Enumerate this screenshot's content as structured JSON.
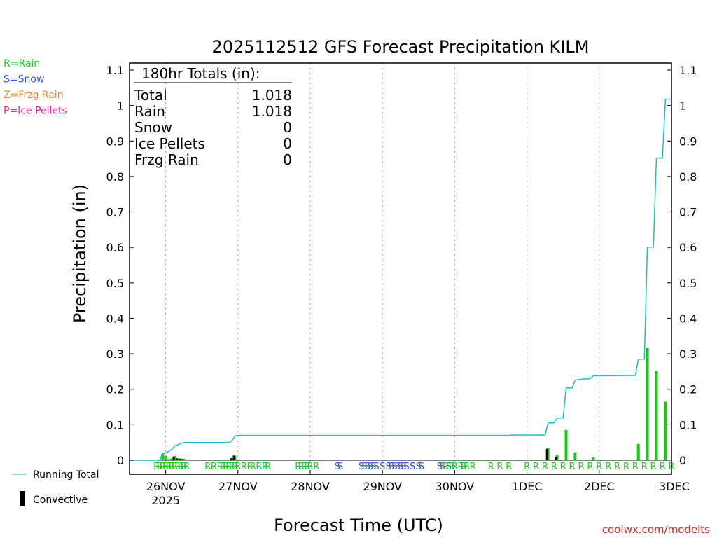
{
  "chart_data": {
    "type": "bar",
    "title": "2025112512 GFS Forecast Precipitation KILM",
    "xlabel": "Forecast Time (UTC)",
    "ylabel": "Precipitation (in)",
    "ylim": [
      0,
      1.1
    ],
    "y_ticks": [
      "0",
      "0.1",
      "0.2",
      "0.3",
      "0.4",
      "0.5",
      "0.6",
      "0.7",
      "0.8",
      "0.9",
      "1",
      "1.1"
    ],
    "x_range_hours": [
      0,
      180
    ],
    "x_ticks": [
      {
        "hour": 12,
        "label": "26NOV",
        "sublabel": "2025"
      },
      {
        "hour": 36,
        "label": "27NOV",
        "sublabel": ""
      },
      {
        "hour": 60,
        "label": "28NOV",
        "sublabel": ""
      },
      {
        "hour": 84,
        "label": "29NOV",
        "sublabel": ""
      },
      {
        "hour": 108,
        "label": "30NOV",
        "sublabel": ""
      },
      {
        "hour": 132,
        "label": "1DEC",
        "sublabel": ""
      },
      {
        "hour": 156,
        "label": "2DEC",
        "sublabel": ""
      },
      {
        "hour": 180,
        "label": "3DEC",
        "sublabel": ""
      }
    ],
    "legend": [
      {
        "text": "R=Rain",
        "color": "#22cc22"
      },
      {
        "text": "S=Snow",
        "color": "#3355dd"
      },
      {
        "text": "Z=Frzg Rain",
        "color": "#ee8833"
      },
      {
        "text": "P=Ice Pellets",
        "color": "#ee2299"
      }
    ],
    "series_legend": {
      "running_total": "Running Total",
      "convective": "Convective"
    },
    "totals": {
      "header": "180hr Totals (in):",
      "rows": [
        {
          "label": "Total",
          "value": "1.018"
        },
        {
          "label": "Rain",
          "value": "1.018"
        },
        {
          "label": "Snow",
          "value": "0"
        },
        {
          "label": "Ice Pellets",
          "value": "0"
        },
        {
          "label": "Frzg Rain",
          "value": "0"
        }
      ]
    },
    "colors": {
      "rain_bar": "#11cc11",
      "convective_bar": "#000000",
      "running_total": "#22bbcc",
      "rain_text": "#22cc22",
      "snow_text": "#3355dd"
    },
    "precip_bars": [
      {
        "hour": 11,
        "value": 0.018,
        "convective": 0.0
      },
      {
        "hour": 12,
        "value": 0.012,
        "convective": 0.0
      },
      {
        "hour": 13,
        "value": 0.003,
        "convective": 0.0
      },
      {
        "hour": 14,
        "value": 0.005,
        "convective": 0.0
      },
      {
        "hour": 15,
        "value": 0.012,
        "convective": 0.01
      },
      {
        "hour": 16,
        "value": 0.006,
        "convective": 0.005
      },
      {
        "hour": 17,
        "value": 0.005,
        "convective": 0.004
      },
      {
        "hour": 18,
        "value": 0.004,
        "convective": 0.003
      },
      {
        "hour": 19,
        "value": 0.002,
        "convective": 0.001
      },
      {
        "hour": 31,
        "value": 0.001,
        "convective": 0.0
      },
      {
        "hour": 32,
        "value": 0.001,
        "convective": 0.0
      },
      {
        "hour": 33,
        "value": 0.001,
        "convective": 0.0
      },
      {
        "hour": 34,
        "value": 0.006,
        "convective": 0.005
      },
      {
        "hour": 35,
        "value": 0.013,
        "convective": 0.013
      },
      {
        "hour": 36,
        "value": 0.001,
        "convective": 0.0
      },
      {
        "hour": 37,
        "value": 0.001,
        "convective": 0.0
      },
      {
        "hour": 139,
        "value": 0.034,
        "convective": 0.032
      },
      {
        "hour": 142,
        "value": 0.014,
        "convective": 0.01
      },
      {
        "hour": 145,
        "value": 0.085,
        "convective": 0.0
      },
      {
        "hour": 148,
        "value": 0.022,
        "convective": 0.0
      },
      {
        "hour": 151,
        "value": 0.001,
        "convective": 0.0
      },
      {
        "hour": 154,
        "value": 0.008,
        "convective": 0.0
      },
      {
        "hour": 157,
        "value": 0.001,
        "convective": 0.0
      },
      {
        "hour": 160,
        "value": 0.001,
        "convective": 0.0
      },
      {
        "hour": 163,
        "value": 0.001,
        "convective": 0.0
      },
      {
        "hour": 166,
        "value": 0.001,
        "convective": 0.0
      },
      {
        "hour": 169,
        "value": 0.046,
        "convective": 0.0
      },
      {
        "hour": 172,
        "value": 0.316,
        "convective": 0.0
      },
      {
        "hour": 175,
        "value": 0.251,
        "convective": 0.0
      },
      {
        "hour": 178,
        "value": 0.165,
        "convective": 0.0
      }
    ],
    "running_total": [
      {
        "hour": 0,
        "value": 0.0
      },
      {
        "hour": 10,
        "value": 0.0
      },
      {
        "hour": 11,
        "value": 0.018
      },
      {
        "hour": 12,
        "value": 0.02
      },
      {
        "hour": 13,
        "value": 0.025
      },
      {
        "hour": 14,
        "value": 0.03
      },
      {
        "hour": 15,
        "value": 0.04
      },
      {
        "hour": 16,
        "value": 0.043
      },
      {
        "hour": 17,
        "value": 0.047
      },
      {
        "hour": 18,
        "value": 0.05
      },
      {
        "hour": 33,
        "value": 0.05
      },
      {
        "hour": 34,
        "value": 0.055
      },
      {
        "hour": 35,
        "value": 0.068
      },
      {
        "hour": 36,
        "value": 0.07
      },
      {
        "hour": 126,
        "value": 0.07
      },
      {
        "hour": 127,
        "value": 0.071
      },
      {
        "hour": 138,
        "value": 0.071
      },
      {
        "hour": 139,
        "value": 0.105
      },
      {
        "hour": 141,
        "value": 0.105
      },
      {
        "hour": 142,
        "value": 0.119
      },
      {
        "hour": 144,
        "value": 0.119
      },
      {
        "hour": 145,
        "value": 0.204
      },
      {
        "hour": 147,
        "value": 0.204
      },
      {
        "hour": 148,
        "value": 0.226
      },
      {
        "hour": 150,
        "value": 0.228
      },
      {
        "hour": 151,
        "value": 0.229
      },
      {
        "hour": 153,
        "value": 0.23
      },
      {
        "hour": 154,
        "value": 0.238
      },
      {
        "hour": 168,
        "value": 0.239
      },
      {
        "hour": 169,
        "value": 0.285
      },
      {
        "hour": 171,
        "value": 0.285
      },
      {
        "hour": 172,
        "value": 0.601
      },
      {
        "hour": 174,
        "value": 0.601
      },
      {
        "hour": 175,
        "value": 0.852
      },
      {
        "hour": 177,
        "value": 0.852
      },
      {
        "hour": 178,
        "value": 1.018
      },
      {
        "hour": 180,
        "value": 1.018
      }
    ],
    "ptype_markers": [
      {
        "hour": 9,
        "text": "R"
      },
      {
        "hour": 10,
        "text": "R"
      },
      {
        "hour": 11,
        "text": "R"
      },
      {
        "hour": 12,
        "text": "R"
      },
      {
        "hour": 13,
        "text": "R"
      },
      {
        "hour": 14,
        "text": "R"
      },
      {
        "hour": 15,
        "text": "R"
      },
      {
        "hour": 16,
        "text": "R"
      },
      {
        "hour": 17,
        "text": "R"
      },
      {
        "hour": 18,
        "text": "R"
      },
      {
        "hour": 19,
        "text": "R"
      },
      {
        "hour": 26,
        "text": "R"
      },
      {
        "hour": 28,
        "text": "R"
      },
      {
        "hour": 30,
        "text": "R"
      },
      {
        "hour": 31,
        "text": "R"
      },
      {
        "hour": 32,
        "text": "R"
      },
      {
        "hour": 33,
        "text": "R"
      },
      {
        "hour": 34,
        "text": "R"
      },
      {
        "hour": 35,
        "text": "R"
      },
      {
        "hour": 36,
        "text": "R"
      },
      {
        "hour": 38,
        "text": "R"
      },
      {
        "hour": 40,
        "text": "R"
      },
      {
        "hour": 41,
        "text": "R"
      },
      {
        "hour": 43,
        "text": "R"
      },
      {
        "hour": 45,
        "text": "R"
      },
      {
        "hour": 46,
        "text": "R"
      },
      {
        "hour": 56,
        "text": "R"
      },
      {
        "hour": 57,
        "text": "R"
      },
      {
        "hour": 58,
        "text": "R"
      },
      {
        "hour": 59,
        "text": "R"
      },
      {
        "hour": 60,
        "text": "R"
      },
      {
        "hour": 62,
        "text": "R"
      },
      {
        "hour": 69,
        "text": "S"
      },
      {
        "hour": 70,
        "text": "S"
      },
      {
        "hour": 77,
        "text": "S"
      },
      {
        "hour": 78,
        "text": "S"
      },
      {
        "hour": 79,
        "text": "S"
      },
      {
        "hour": 80,
        "text": "S"
      },
      {
        "hour": 81,
        "text": "S"
      },
      {
        "hour": 82,
        "text": "S"
      },
      {
        "hour": 84,
        "text": "S"
      },
      {
        "hour": 86,
        "text": "S"
      },
      {
        "hour": 87,
        "text": "S"
      },
      {
        "hour": 88,
        "text": "S"
      },
      {
        "hour": 89,
        "text": "S"
      },
      {
        "hour": 90,
        "text": "S"
      },
      {
        "hour": 91,
        "text": "S"
      },
      {
        "hour": 92,
        "text": "S"
      },
      {
        "hour": 94,
        "text": "S"
      },
      {
        "hour": 96,
        "text": "S"
      },
      {
        "hour": 97,
        "text": "S"
      },
      {
        "hour": 103,
        "text": "S"
      },
      {
        "hour": 104,
        "text": "S"
      },
      {
        "hour": 105,
        "text": "R"
      },
      {
        "hour": 106,
        "text": "S"
      },
      {
        "hour": 107,
        "text": "R"
      },
      {
        "hour": 108,
        "text": "R"
      },
      {
        "hour": 110,
        "text": "R"
      },
      {
        "hour": 111,
        "text": "R"
      },
      {
        "hour": 112,
        "text": "R"
      },
      {
        "hour": 114,
        "text": "R"
      },
      {
        "hour": 120,
        "text": "R"
      },
      {
        "hour": 123,
        "text": "R"
      },
      {
        "hour": 126,
        "text": "R"
      },
      {
        "hour": 132,
        "text": "R"
      },
      {
        "hour": 135,
        "text": "R"
      },
      {
        "hour": 138,
        "text": "R"
      },
      {
        "hour": 141,
        "text": "R"
      },
      {
        "hour": 144,
        "text": "R"
      },
      {
        "hour": 147,
        "text": "R"
      },
      {
        "hour": 150,
        "text": "R"
      },
      {
        "hour": 153,
        "text": "R"
      },
      {
        "hour": 156,
        "text": "R"
      },
      {
        "hour": 159,
        "text": "R"
      },
      {
        "hour": 162,
        "text": "R"
      },
      {
        "hour": 165,
        "text": "R"
      },
      {
        "hour": 168,
        "text": "R"
      },
      {
        "hour": 171,
        "text": "R"
      },
      {
        "hour": 174,
        "text": "R"
      },
      {
        "hour": 177,
        "text": "R"
      },
      {
        "hour": 180,
        "text": "R"
      }
    ],
    "watermark": "coolwx.com/modelts"
  }
}
